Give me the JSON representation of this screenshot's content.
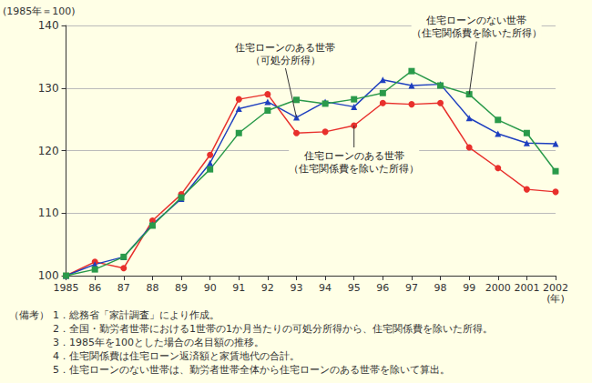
{
  "chart_data": {
    "type": "line",
    "y_label": "(1985年＝100)",
    "x_label": "(年)",
    "categories": [
      "1985",
      "86",
      "87",
      "88",
      "89",
      "90",
      "91",
      "92",
      "93",
      "94",
      "95",
      "96",
      "97",
      "98",
      "99",
      "2000",
      "2001",
      "2002"
    ],
    "series": [
      {
        "name": "住宅ローンのある世帯\n（住宅関係費を除いた所得）",
        "color": "#e8302c",
        "marker": "circle",
        "values": [
          100,
          102.2,
          101.2,
          108.8,
          113,
          119.3,
          128.2,
          129,
          122.8,
          123,
          124,
          127.6,
          127.4,
          127.6,
          120.5,
          117.2,
          113.8,
          113.4
        ]
      },
      {
        "name": "住宅ローンのある世帯\n（可処分所得）",
        "color": "#1e3fbf",
        "marker": "triangle",
        "values": [
          100,
          101.8,
          103,
          108.2,
          112.3,
          118,
          126.7,
          127.8,
          125.3,
          127.8,
          127,
          131.3,
          130.4,
          130.6,
          125.2,
          122.7,
          121.2,
          121.1
        ]
      },
      {
        "name": "住宅ローンのない世帯\n（住宅関係費を除いた所得）",
        "color": "#2a9a4a",
        "marker": "rect",
        "values": [
          100,
          101,
          103,
          108,
          112.5,
          117,
          122.8,
          126.4,
          128.1,
          127.5,
          128.2,
          129.2,
          132.7,
          130.4,
          129,
          124.9,
          122.8,
          116.7
        ]
      }
    ],
    "ylim": [
      100,
      140
    ],
    "yticks": [
      100,
      110,
      120,
      130,
      140
    ],
    "grid": true,
    "notes": [
      "（備考）",
      "1．総務省「家計調査」により作成。",
      "2．全国・勤労者世帯における1世帯の1か月当たりの可処分所得から、住宅関係費を除いた所得。",
      "3．1985年を100とした場合の名目額の推移。",
      "4．住宅関係費は住宅ローン返済額と家賃地代の合計。",
      "5．住宅ローンのない世帯は、勤労者世帯全体から住宅ローンのある世帯を除いて算出。"
    ]
  }
}
